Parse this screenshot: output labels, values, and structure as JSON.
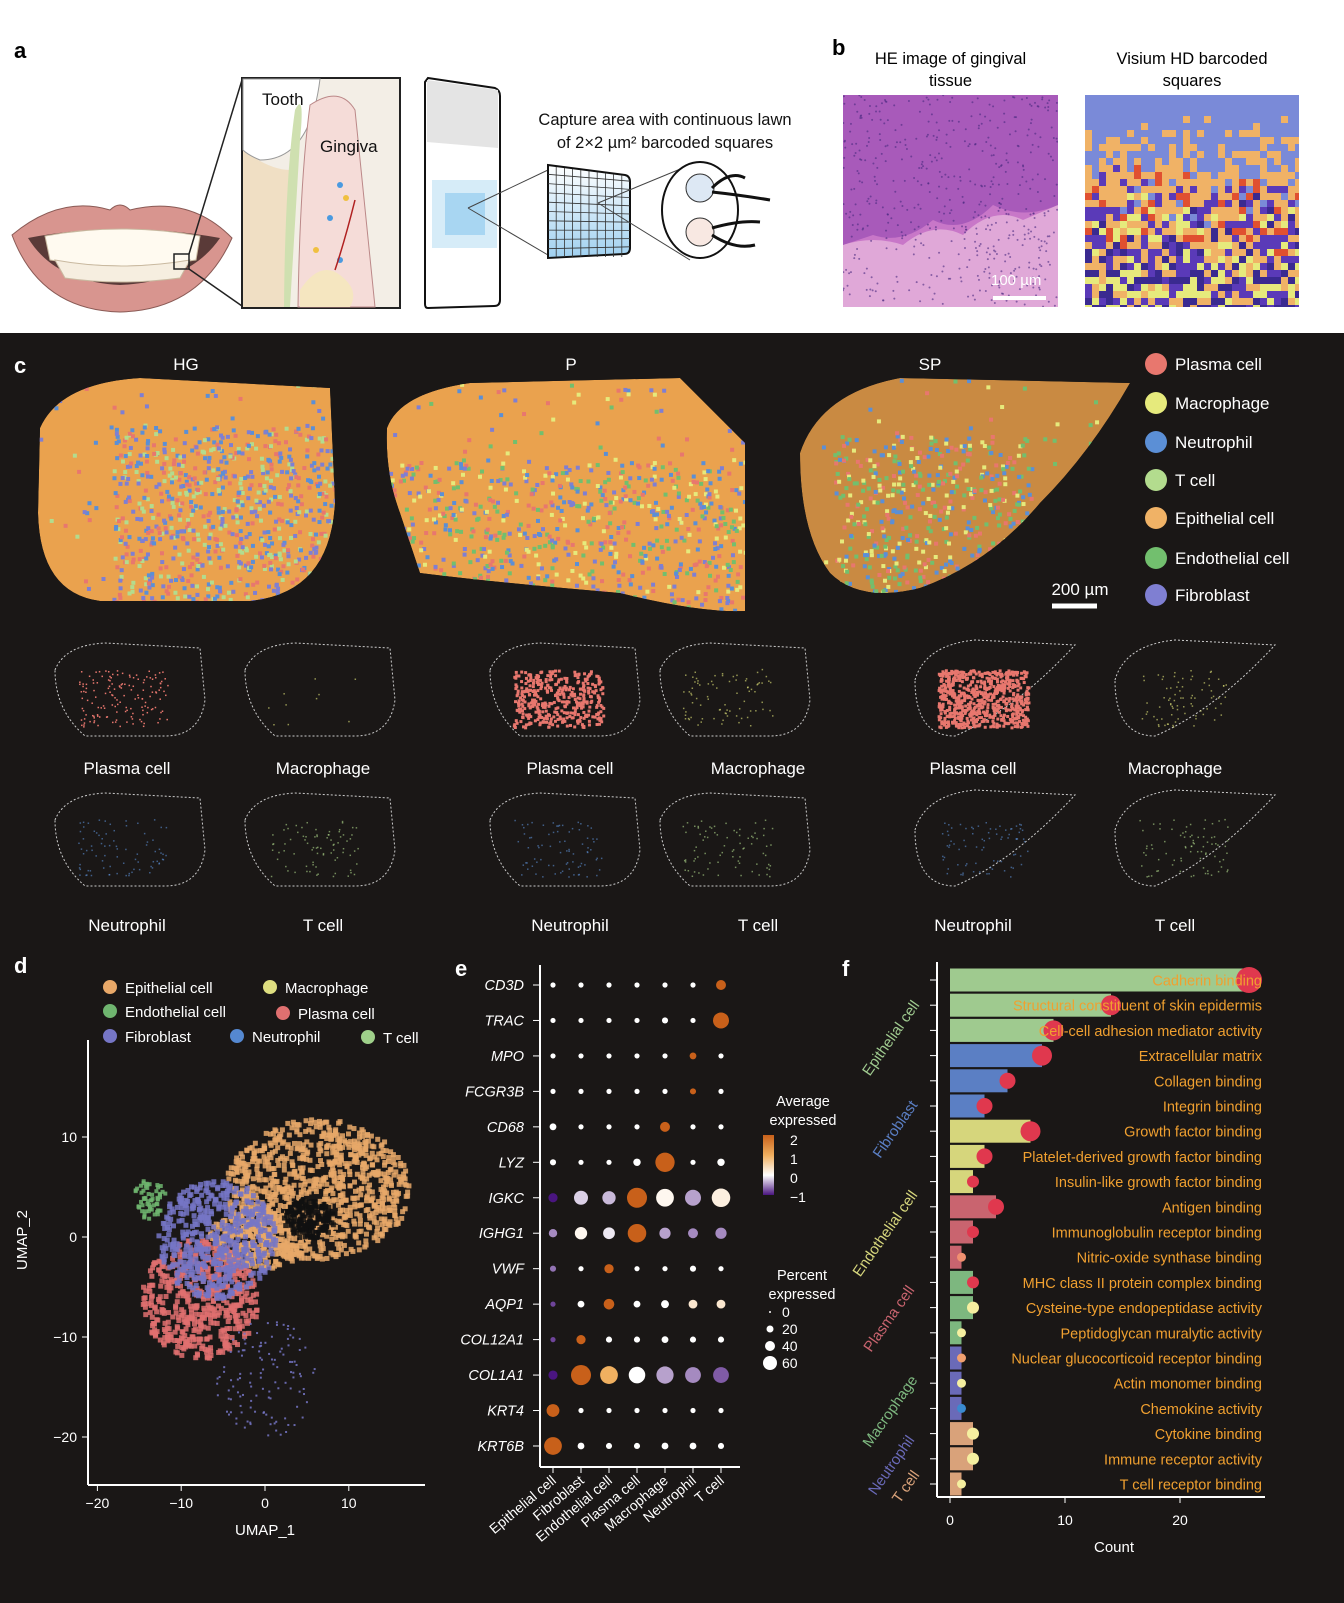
{
  "panels": {
    "a": "a",
    "b": "b",
    "c": "c",
    "d": "d",
    "e": "e",
    "f": "f"
  },
  "panel_a": {
    "tooth_label": "Tooth",
    "gingiva_label": "Gingiva",
    "capture_line1": "Capture area with continuous lawn",
    "capture_line2": "of 2×2 µm² barcoded squares"
  },
  "panel_b": {
    "he_title_1": "HE image of gingival",
    "he_title_2": "tissue",
    "visium_title_1": "Visium HD barcoded",
    "visium_title_2": "squares",
    "scale_bar": "100 µm"
  },
  "panel_c": {
    "samples": [
      "HG",
      "P",
      "SP"
    ],
    "scale_bar": "200 µm",
    "legend": [
      {
        "label": "Plasma cell",
        "color": "#e8776e"
      },
      {
        "label": "Macrophage",
        "color": "#e6ea7c"
      },
      {
        "label": "Neutrophil",
        "color": "#5b8fd6"
      },
      {
        "label": "T cell",
        "color": "#b3dc8e"
      },
      {
        "label": "Epithelial cell",
        "color": "#f0b266"
      },
      {
        "label": "Endothelial cell",
        "color": "#72bf6e"
      },
      {
        "label": "Fibroblast",
        "color": "#7f7fd2"
      }
    ],
    "small_labels": [
      "Plasma cell",
      "Macrophage",
      "Neutrophil",
      "T cell"
    ]
  },
  "chart_data": [
    {
      "type": "scatter",
      "panel": "d",
      "xlabel": "UMAP_1",
      "ylabel": "UMAP_2",
      "xticks": [
        -20,
        -10,
        0,
        10
      ],
      "yticks": [
        10,
        0,
        -10,
        -20
      ],
      "xlim": [
        -21.5,
        18
      ],
      "ylim": [
        -25,
        19
      ],
      "legend": [
        {
          "label": "Epithelial cell",
          "color": "#e8a868"
        },
        {
          "label": "Macrophage",
          "color": "#dede80"
        },
        {
          "label": "Endothelial cell",
          "color": "#6fb56f"
        },
        {
          "label": "Plasma cell",
          "color": "#e07070"
        },
        {
          "label": "Fibroblast",
          "color": "#7676c6"
        },
        {
          "label": "Neutrophil",
          "color": "#5588d0"
        },
        {
          "label": "T cell",
          "color": "#9fd08a"
        }
      ]
    },
    {
      "type": "dot",
      "panel": "e",
      "genes": [
        "CD3D",
        "TRAC",
        "MPO",
        "FCGR3B",
        "CD68",
        "LYZ",
        "IGKC",
        "IGHG1",
        "VWF",
        "AQP1",
        "COL12A1",
        "COL1A1",
        "KRT4",
        "KRT6B"
      ],
      "cell_types": [
        "Epithelial cell",
        "Fibroblast",
        "Endothelial cell",
        "Plasma cell",
        "Macrophage",
        "Neutrophil",
        "T cell"
      ],
      "percent_expressed": [
        [
          1,
          1,
          1,
          1,
          1,
          1,
          10
        ],
        [
          1,
          1,
          1,
          1,
          2,
          1,
          35
        ],
        [
          1,
          1,
          1,
          1,
          1,
          3,
          1
        ],
        [
          1,
          1,
          1,
          1,
          1,
          2,
          1
        ],
        [
          3,
          1,
          1,
          1,
          10,
          1,
          1
        ],
        [
          2,
          1,
          1,
          4,
          55,
          1,
          4
        ],
        [
          8,
          25,
          22,
          60,
          45,
          35,
          50
        ],
        [
          6,
          18,
          16,
          50,
          14,
          10,
          14
        ],
        [
          2,
          1,
          8,
          1,
          1,
          2,
          1
        ],
        [
          1,
          3,
          12,
          3,
          5,
          7,
          7
        ],
        [
          1,
          8,
          2,
          2,
          3,
          2,
          2
        ],
        [
          8,
          60,
          45,
          38,
          42,
          34,
          34
        ],
        [
          20,
          1,
          1,
          1,
          1,
          1,
          1
        ],
        [
          45,
          3,
          2,
          2,
          3,
          3,
          2
        ]
      ],
      "average_expression": [
        [
          0,
          0,
          0,
          0,
          0,
          0,
          2
        ],
        [
          0,
          0,
          0,
          0,
          0,
          0,
          2
        ],
        [
          0,
          0,
          0,
          0,
          0,
          2,
          0
        ],
        [
          0,
          0,
          0,
          0,
          0,
          2,
          0
        ],
        [
          0,
          0,
          0,
          0,
          2,
          0,
          0
        ],
        [
          0,
          0,
          0,
          0,
          2,
          0,
          0
        ],
        [
          -1,
          -0.2,
          -0.3,
          2,
          0.1,
          -0.4,
          0.2
        ],
        [
          -0.5,
          0.1,
          -0.1,
          2,
          -0.4,
          -0.5,
          -0.5
        ],
        [
          -0.6,
          0,
          2,
          0,
          0,
          0,
          0
        ],
        [
          -0.8,
          0,
          2,
          0,
          0,
          0.3,
          0.3
        ],
        [
          -0.8,
          2,
          0,
          0,
          0,
          0,
          0
        ],
        [
          -1,
          2,
          1,
          0,
          -0.4,
          -0.5,
          -0.7
        ],
        [
          2,
          0,
          0,
          0,
          0,
          0,
          0
        ],
        [
          2,
          0,
          0,
          0,
          0,
          0,
          0
        ]
      ],
      "color_legend": {
        "title_1": "Average",
        "title_2": "expressed",
        "ticks": [
          "2",
          "1",
          "0",
          "−1"
        ],
        "range": [
          -1,
          2
        ],
        "low": "#4a1580",
        "mid": "#ffffff",
        "high": "#c8601a"
      },
      "size_legend": {
        "title_1": "Percent",
        "title_2": "expressed",
        "ticks": [
          "0",
          "20",
          "40",
          "60"
        ]
      }
    },
    {
      "type": "bar",
      "panel": "f",
      "xlabel": "Count",
      "xticks": [
        0,
        10,
        20
      ],
      "xlim": [
        0,
        27
      ],
      "groups": [
        {
          "label": "Epithelial cell",
          "color": "#9fca8f"
        },
        {
          "label": "Fibroblast",
          "color": "#5b7fc4"
        },
        {
          "label": "Endothelial cell",
          "color": "#d6d67c"
        },
        {
          "label": "Plasma cell",
          "color": "#c9646f"
        },
        {
          "label": "Macrophage",
          "color": "#7db77f"
        },
        {
          "label": "Neutrophil",
          "color": "#6a6ab8"
        },
        {
          "label": "T cell",
          "color": "#d9a27a"
        }
      ],
      "terms": [
        {
          "label": "Cadherin binding",
          "count": 26,
          "group": 0,
          "dot": "#e0384e"
        },
        {
          "label": "Structural constituent of skin epidermis",
          "count": 14,
          "group": 0,
          "dot": "#e0384e"
        },
        {
          "label": "Cell-cell adhesion mediator activity",
          "count": 9,
          "group": 0,
          "dot": "#e0384e"
        },
        {
          "label": "Extracellular matrix",
          "count": 8,
          "group": 1,
          "dot": "#e0384e"
        },
        {
          "label": "Collagen binding",
          "count": 5,
          "group": 1,
          "dot": "#e0384e"
        },
        {
          "label": "Integrin binding",
          "count": 3,
          "group": 1,
          "dot": "#e0384e"
        },
        {
          "label": "Growth factor binding",
          "count": 7,
          "group": 2,
          "dot": "#e0384e"
        },
        {
          "label": "Platelet-derived growth factor binding",
          "count": 3,
          "group": 2,
          "dot": "#e0384e"
        },
        {
          "label": "Insulin-like growth factor binding",
          "count": 2,
          "group": 2,
          "dot": "#e0384e"
        },
        {
          "label": "Antigen binding",
          "count": 4,
          "group": 3,
          "dot": "#e0384e"
        },
        {
          "label": "Immunoglobulin receptor binding",
          "count": 2,
          "group": 3,
          "dot": "#e0384e"
        },
        {
          "label": "Nitric-oxide synthase binding",
          "count": 1,
          "group": 3,
          "dot": "#f09070"
        },
        {
          "label": "MHC class II protein complex binding",
          "count": 2,
          "group": 4,
          "dot": "#e0384e"
        },
        {
          "label": "Cysteine-type endopeptidase activity",
          "count": 2,
          "group": 4,
          "dot": "#f5efa0"
        },
        {
          "label": "Peptidoglycan muralytic activity",
          "count": 1,
          "group": 4,
          "dot": "#f5efa0"
        },
        {
          "label": "Nuclear glucocorticoid receptor binding",
          "count": 1,
          "group": 5,
          "dot": "#f0a070"
        },
        {
          "label": "Actin monomer binding",
          "count": 1,
          "group": 5,
          "dot": "#f5efa0"
        },
        {
          "label": "Chemokine activity",
          "count": 1,
          "group": 5,
          "dot": "#3a8ad0"
        },
        {
          "label": "Cytokine binding",
          "count": 2,
          "group": 6,
          "dot": "#f5efa0"
        },
        {
          "label": "Immune receptor activity",
          "count": 2,
          "group": 6,
          "dot": "#f5efa0"
        },
        {
          "label": "T cell receptor binding",
          "count": 1,
          "group": 6,
          "dot": "#f5efa0"
        }
      ],
      "label_color": "#f0a030"
    }
  ]
}
